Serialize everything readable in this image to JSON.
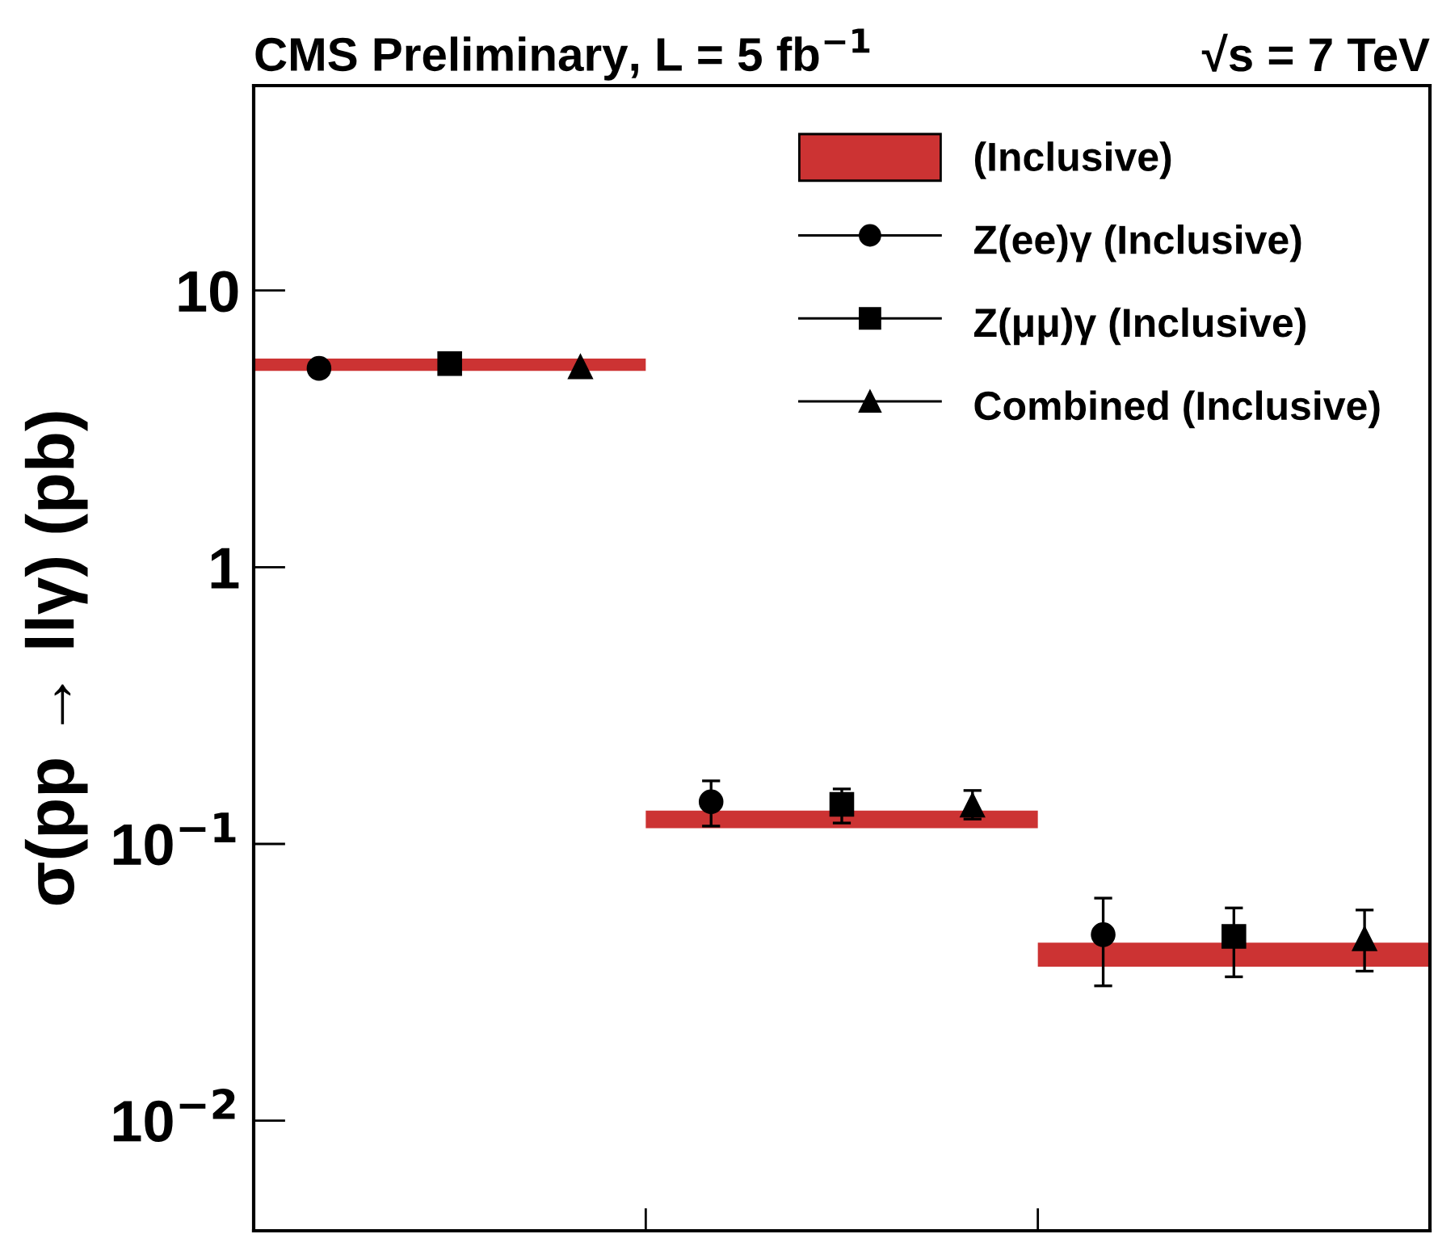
{
  "chart_data": {
    "type": "scatter",
    "title": "CMS Preliminary, L = 5 fb$^{−1}$",
    "subtitle": "√s = 7 TeV",
    "ylabel": "σ(pp → llγ) (pb)",
    "categories": [
      null,
      null,
      null
    ],
    "log": true,
    "ylim": [
      0.004,
      55
    ],
    "yticks": [
      {
        "value": 0.01,
        "label": "10$^{−2}$"
      },
      {
        "value": 0.1,
        "label": "10$^{−1}$"
      },
      1,
      10
    ],
    "legend": "top right",
    "grid": false,
    "series": [
      {
        "name": "(Inclusive)",
        "type": "bar",
        "color": "#cc3333",
        "base": [
          5.12,
          0.114,
          0.036
        ],
        "values": [
          0.55,
          0.018,
          0.008
        ]
      },
      {
        "name": "Z(ee)γ (Inclusive)",
        "color": "#000000",
        "marker": "circle",
        "values": [
          5.23,
          0.142,
          0.047
        ],
        "errors": [
          null,
          [
            0.116,
            0.169
          ],
          [
            0.0307,
            0.0637
          ]
        ]
      },
      {
        "name": "Z(μμ)γ (Inclusive)",
        "color": "#000000",
        "marker": "square",
        "values": [
          5.44,
          0.139,
          0.0463
        ],
        "errors": [
          null,
          [
            0.119,
            0.158
          ],
          [
            0.0331,
            0.0587
          ]
        ]
      },
      {
        "name": "Combined (Inclusive)",
        "color": "#000000",
        "marker": "triangle",
        "values": [
          5.3,
          0.138,
          0.0454
        ],
        "errors": [
          null,
          [
            0.123,
            0.156
          ],
          [
            0.0347,
            0.0577
          ]
        ]
      }
    ]
  }
}
